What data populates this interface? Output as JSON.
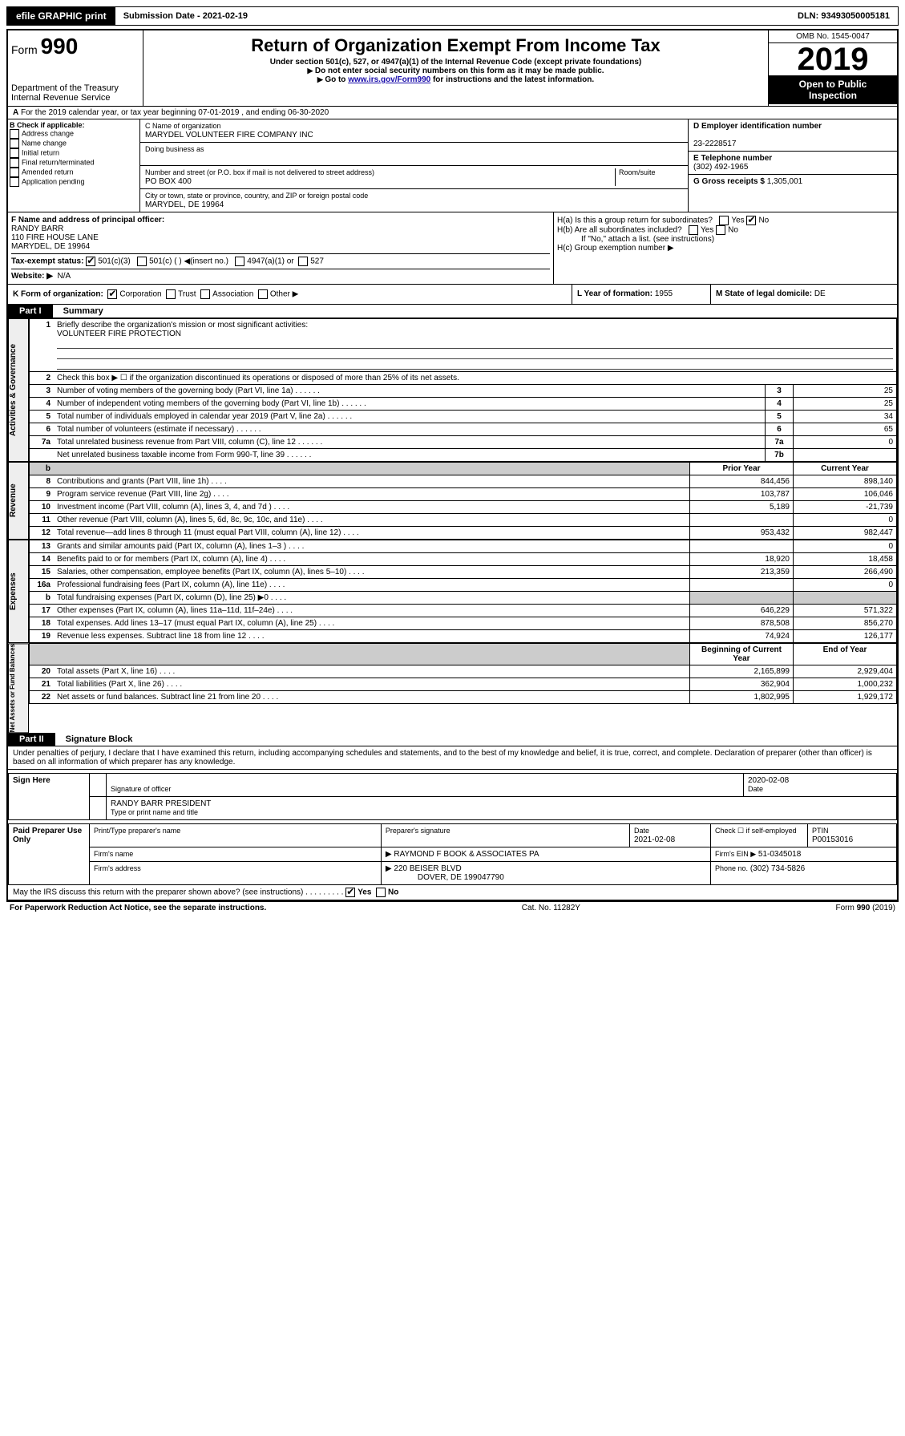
{
  "header_bar": {
    "efile": "efile GRAPHIC print",
    "sub_label": "Submission Date - 2021-02-19",
    "dln": "DLN: 93493050005181"
  },
  "top": {
    "form_label": "Form",
    "form_no": "990",
    "dept": "Department of the Treasury",
    "irs": "Internal Revenue Service",
    "title": "Return of Organization Exempt From Income Tax",
    "sub1": "Under section 501(c), 527, or 4947(a)(1) of the Internal Revenue Code (except private foundations)",
    "sub2": "Do not enter social security numbers on this form as it may be made public.",
    "sub3": "Go to ",
    "sub3_link": "www.irs.gov/Form990",
    "sub3_tail": " for instructions and the latest information.",
    "omb": "OMB No. 1545-0047",
    "year": "2019",
    "open": "Open to Public",
    "insp": "Inspection"
  },
  "rowA": {
    "prefix": "A",
    "text": "For the 2019 calendar year, or tax year beginning 07-01-2019",
    "tail": ", and ending 06-30-2020"
  },
  "boxB": {
    "label": "B Check if applicable:",
    "items": [
      "Address change",
      "Name change",
      "Initial return",
      "Final return/terminated",
      "Amended return",
      "Application pending"
    ]
  },
  "boxC": {
    "c_label": "C Name of organization",
    "org": "MARYDEL VOLUNTEER FIRE COMPANY INC",
    "dba_label": "Doing business as",
    "dba": "",
    "addr_label": "Number and street (or P.O. box if mail is not delivered to street address)",
    "room": "Room/suite",
    "addr": "PO BOX 400",
    "city_label": "City or town, state or province, country, and ZIP or foreign postal code",
    "city": "MARYDEL, DE  19964"
  },
  "boxD": {
    "label": "D Employer identification number",
    "ein": "23-2228517"
  },
  "boxE": {
    "label": "E Telephone number",
    "tel": "(302) 492-1965"
  },
  "boxG": {
    "label": "G Gross receipts $",
    "val": "1,305,001"
  },
  "boxF": {
    "label": "F  Name and address of principal officer:",
    "name": "RANDY BARR",
    "addr1": "110 FIRE HOUSE LANE",
    "addr2": "MARYDEL, DE  19964"
  },
  "boxH": {
    "a": "H(a)  Is this a group return for subordinates?",
    "b": "H(b)  Are all subordinates included?",
    "note": "If \"No,\" attach a list. (see instructions)",
    "c": "H(c)  Group exemption number ▶",
    "yes": "Yes",
    "no": "No"
  },
  "boxI": {
    "label": "Tax-exempt status:",
    "c3": "501(c)(3)",
    "c": "501(c) (  ) ◀(insert no.)",
    "a1": "4947(a)(1) or",
    "s527": "527"
  },
  "boxJ": {
    "label": "Website: ▶",
    "val": "N/A"
  },
  "boxK": {
    "label": "K Form of organization:",
    "corp": "Corporation",
    "trust": "Trust",
    "assoc": "Association",
    "other": "Other ▶"
  },
  "boxL": {
    "label": "L Year of formation:",
    "val": "1955"
  },
  "boxM": {
    "label": "M State of legal domicile:",
    "val": "DE"
  },
  "part1": {
    "hd": "Part I",
    "title": "Summary"
  },
  "gov": {
    "l1": "Briefly describe the organization's mission or most significant activities:",
    "mission": "VOLUNTEER FIRE PROTECTION",
    "l2": "Check this box ▶ ☐  if the organization discontinued its operations or disposed of more than 25% of its net assets.",
    "rows": [
      {
        "n": "3",
        "t": "Number of voting members of the governing body (Part VI, line 1a)",
        "c": "3",
        "v": "25"
      },
      {
        "n": "4",
        "t": "Number of independent voting members of the governing body (Part VI, line 1b)",
        "c": "4",
        "v": "25"
      },
      {
        "n": "5",
        "t": "Total number of individuals employed in calendar year 2019 (Part V, line 2a)",
        "c": "5",
        "v": "34"
      },
      {
        "n": "6",
        "t": "Total number of volunteers (estimate if necessary)",
        "c": "6",
        "v": "65"
      },
      {
        "n": "7a",
        "t": "Total unrelated business revenue from Part VIII, column (C), line 12",
        "c": "7a",
        "v": "0"
      },
      {
        "n": "",
        "t": "Net unrelated business taxable income from Form 990-T, line 39",
        "c": "7b",
        "v": ""
      }
    ]
  },
  "col_hd": {
    "prior": "Prior Year",
    "curr": "Current Year",
    "beg": "Beginning of Current Year",
    "end": "End of Year"
  },
  "rev": [
    {
      "n": "8",
      "t": "Contributions and grants (Part VIII, line 1h)",
      "p": "844,456",
      "c": "898,140"
    },
    {
      "n": "9",
      "t": "Program service revenue (Part VIII, line 2g)",
      "p": "103,787",
      "c": "106,046"
    },
    {
      "n": "10",
      "t": "Investment income (Part VIII, column (A), lines 3, 4, and 7d )",
      "p": "5,189",
      "c": "-21,739"
    },
    {
      "n": "11",
      "t": "Other revenue (Part VIII, column (A), lines 5, 6d, 8c, 9c, 10c, and 11e)",
      "p": "",
      "c": "0"
    },
    {
      "n": "12",
      "t": "Total revenue—add lines 8 through 11 (must equal Part VIII, column (A), line 12)",
      "p": "953,432",
      "c": "982,447"
    }
  ],
  "exp": [
    {
      "n": "13",
      "t": "Grants and similar amounts paid (Part IX, column (A), lines 1–3 )",
      "p": "",
      "c": "0"
    },
    {
      "n": "14",
      "t": "Benefits paid to or for members (Part IX, column (A), line 4)",
      "p": "18,920",
      "c": "18,458"
    },
    {
      "n": "15",
      "t": "Salaries, other compensation, employee benefits (Part IX, column (A), lines 5–10)",
      "p": "213,359",
      "c": "266,490"
    },
    {
      "n": "16a",
      "t": "Professional fundraising fees (Part IX, column (A), line 11e)",
      "p": "",
      "c": "0"
    },
    {
      "n": "b",
      "t": "Total fundraising expenses (Part IX, column (D), line 25) ▶0",
      "p": "GREY",
      "c": "GREY"
    },
    {
      "n": "17",
      "t": "Other expenses (Part IX, column (A), lines 11a–11d, 11f–24e)",
      "p": "646,229",
      "c": "571,322"
    },
    {
      "n": "18",
      "t": "Total expenses. Add lines 13–17 (must equal Part IX, column (A), line 25)",
      "p": "878,508",
      "c": "856,270"
    },
    {
      "n": "19",
      "t": "Revenue less expenses. Subtract line 18 from line 12",
      "p": "74,924",
      "c": "126,177"
    }
  ],
  "net": [
    {
      "n": "20",
      "t": "Total assets (Part X, line 16)",
      "p": "2,165,899",
      "c": "2,929,404"
    },
    {
      "n": "21",
      "t": "Total liabilities (Part X, line 26)",
      "p": "362,904",
      "c": "1,000,232"
    },
    {
      "n": "22",
      "t": "Net assets or fund balances. Subtract line 21 from line 20",
      "p": "1,802,995",
      "c": "1,929,172"
    }
  ],
  "part2": {
    "hd": "Part II",
    "title": "Signature Block",
    "decl": "Under penalties of perjury, I declare that I have examined this return, including accompanying schedules and statements, and to the best of my knowledge and belief, it is true, correct, and complete. Declaration of preparer (other than officer) is based on all information of which preparer has any knowledge."
  },
  "sign": {
    "side": "Sign Here",
    "sig_label": "Signature of officer",
    "date": "2020-02-08",
    "date_label": "Date",
    "name": "RANDY BARR PRESIDENT",
    "name_label": "Type or print name and title"
  },
  "paid": {
    "side": "Paid Preparer Use Only",
    "h1": "Print/Type preparer's name",
    "h2": "Preparer's signature",
    "h3": "Date",
    "h4": "Check ☐ if self-employed",
    "h5": "PTIN",
    "date": "2021-02-08",
    "ptin": "P00153016",
    "firm_l": "Firm's name",
    "firm": "▶ RAYMOND F BOOK & ASSOCIATES PA",
    "ein_l": "Firm's EIN ▶",
    "ein": "51-0345018",
    "addr_l": "Firm's address",
    "addr": "▶ 220 BEISER BLVD",
    "city": "DOVER, DE  199047790",
    "ph_l": "Phone no.",
    "ph": "(302) 734-5826"
  },
  "footer": {
    "q": "May the IRS discuss this return with the preparer shown above? (see instructions)",
    "yes": "Yes",
    "no": "No",
    "pra": "For Paperwork Reduction Act Notice, see the separate instructions.",
    "cat": "Cat. No. 11282Y",
    "form": "Form 990 (2019)"
  },
  "side_labels": {
    "gov": "Activities & Governance",
    "rev": "Revenue",
    "exp": "Expenses",
    "net": "Net Assets or Fund Balances"
  }
}
